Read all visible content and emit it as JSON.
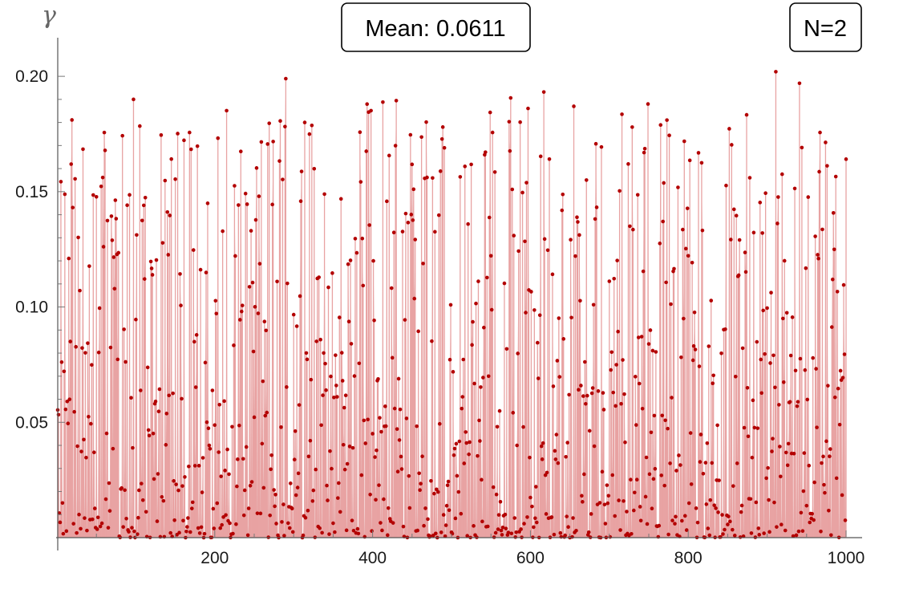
{
  "chart_data": {
    "type": "scatter",
    "style": "stem",
    "xlabel": "",
    "ylabel": "γ",
    "xlim": [
      1,
      1000
    ],
    "ylim": [
      0,
      0.215
    ],
    "x_ticks": [
      200,
      400,
      600,
      800,
      1000
    ],
    "y_ticks": [
      0.05,
      0.1,
      0.15,
      0.2
    ],
    "x_tick_labels": [
      "200",
      "400",
      "600",
      "800",
      "1000"
    ],
    "y_tick_labels": [
      "0.05",
      "0.10",
      "0.15",
      "0.20"
    ],
    "grid": false,
    "colors": {
      "point": "#b30000",
      "stem": "#e8a3a3",
      "fill": "#d46a6a"
    },
    "annotations": [
      {
        "id": "mean",
        "text": "Mean: 0.0611"
      },
      {
        "id": "n",
        "text": "N=2"
      }
    ],
    "series": [
      {
        "n_points": 1000,
        "sample_description": "random values in [0, 0.2], mean 0.0611",
        "highlight_values": [
          {
            "x": 97,
            "y": 0.19
          },
          {
            "x": 290,
            "y": 0.199
          },
          {
            "x": 314,
            "y": 0.18
          },
          {
            "x": 489,
            "y": 0.178
          },
          {
            "x": 655,
            "y": 0.187
          },
          {
            "x": 749,
            "y": 0.188
          },
          {
            "x": 911,
            "y": 0.202
          },
          {
            "x": 941,
            "y": 0.197
          }
        ]
      }
    ]
  }
}
